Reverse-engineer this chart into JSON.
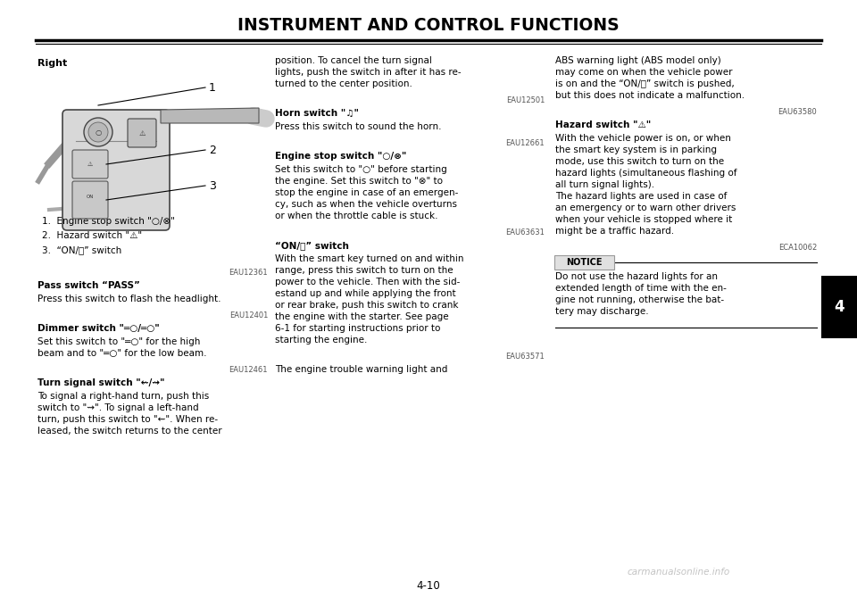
{
  "bg_color": "#ffffff",
  "page_title": "INSTRUMENT AND CONTROL FUNCTIONS",
  "page_number": "4-10",
  "chapter_number": "4",
  "tab_color": "#000000",
  "tab_text_color": "#ffffff",
  "figure_label": "Right",
  "legend_items": [
    "1.  Engine stop switch \"○/⊗\"",
    "2.  Hazard switch \"⚠\"",
    "3.  “ON/＠” switch"
  ],
  "col1_sections": [
    {
      "code": "EAU12361",
      "heading": "Pass switch “PASS”",
      "body": "Press this switch to flash the headlight."
    },
    {
      "code": "EAU12401",
      "heading": "Dimmer switch \"═○/═○\"",
      "body": "Set this switch to \"═○\" for the high\nbeam and to \"═○\" for the low beam."
    },
    {
      "code": "EAU12461",
      "heading": "Turn signal switch \"⇜/⇝\"",
      "body": "To signal a right-hand turn, push this\nswitch to \"⇝\". To signal a left-hand\nturn, push this switch to \"⇜\". When re-\nleased, the switch returns to the center"
    }
  ],
  "col2_sections": [
    {
      "code": "",
      "heading": "",
      "body": "position. To cancel the turn signal\nlights, push the switch in after it has re-\nturned to the center position."
    },
    {
      "code": "EAU12501",
      "heading": "Horn switch \"♫\"",
      "body": "Press this switch to sound the horn."
    },
    {
      "code": "EAU12661",
      "heading": "Engine stop switch \"○/⊗\"",
      "body": "Set this switch to \"○\" before starting\nthe engine. Set this switch to \"⊗\" to\nstop the engine in case of an emergen-\ncy, such as when the vehicle overturns\nor when the throttle cable is stuck."
    },
    {
      "code": "EAU63631",
      "heading": "“ON/＠” switch",
      "body": "With the smart key turned on and within\nrange, press this switch to turn on the\npower to the vehicle. Then with the sid-\nestand up and while applying the front\nor rear brake, push this switch to crank\nthe engine with the starter. See page\n6-1 for starting instructions prior to\nstarting the engine."
    },
    {
      "code": "EAU63571",
      "heading": "",
      "body": "The engine trouble warning light and"
    }
  ],
  "col3_sections": [
    {
      "code": "",
      "heading": "",
      "body": "ABS warning light (ABS model only)\nmay come on when the vehicle power\nis on and the “ON/＠” switch is pushed,\nbut this does not indicate a malfunction."
    },
    {
      "code": "EAU63580",
      "heading": "Hazard switch \"⚠\"",
      "body": "With the vehicle power is on, or when\nthe smart key system is in parking\nmode, use this switch to turn on the\nhazard lights (simultaneous flashing of\nall turn signal lights).\nThe hazard lights are used in case of\nan emergency or to warn other drivers\nwhen your vehicle is stopped where it\nmight be a traffic hazard."
    },
    {
      "code": "ECA10062",
      "heading": "NOTICE",
      "is_notice": true,
      "body": "Do not use the hazard lights for an\nextended length of time with the en-\ngine not running, otherwise the bat-\ntery may discharge."
    }
  ]
}
